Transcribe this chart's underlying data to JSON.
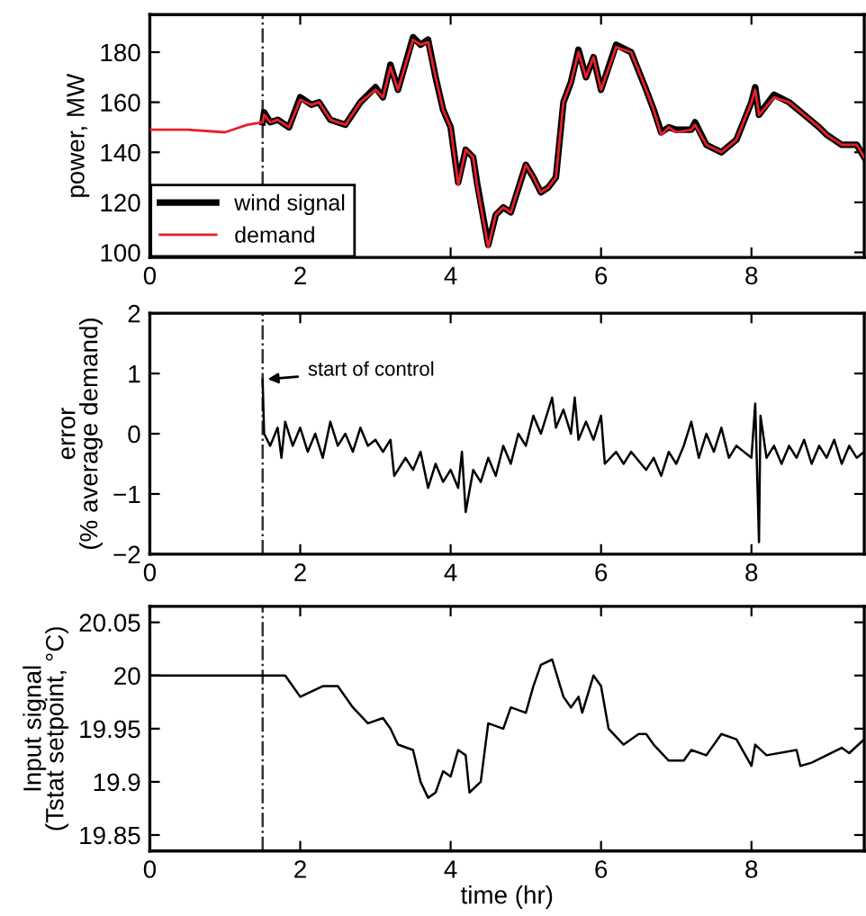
{
  "chart_data": [
    {
      "type": "line",
      "ylabel": "power, MW",
      "xlim": [
        0,
        9.5
      ],
      "ylim": [
        98,
        195
      ],
      "xticks": [
        0,
        2,
        4,
        6,
        8
      ],
      "yticks": [
        100,
        120,
        140,
        160,
        180
      ],
      "grid": false,
      "legend": "bottom left",
      "tick_labels": "xy",
      "ref_lines": [
        {
          "axis": "x",
          "value": 1.5,
          "color": "#333333",
          "line_style": "dashdot"
        }
      ],
      "series": [
        {
          "name": "wind signal",
          "color": "#000000",
          "x": [
            1.5,
            1.52,
            1.6,
            1.7,
            1.85,
            2.0,
            2.15,
            2.25,
            2.4,
            2.6,
            2.8,
            3.0,
            3.1,
            3.2,
            3.3,
            3.5,
            3.6,
            3.7,
            3.8,
            3.9,
            4.0,
            4.1,
            4.2,
            4.3,
            4.35,
            4.5,
            4.6,
            4.7,
            4.8,
            5.0,
            5.1,
            5.2,
            5.3,
            5.4,
            5.5,
            5.6,
            5.7,
            5.8,
            5.9,
            6.0,
            6.2,
            6.4,
            6.6,
            6.7,
            6.8,
            6.9,
            7.0,
            7.2,
            7.25,
            7.4,
            7.6,
            7.8,
            8.0,
            8.05,
            8.1,
            8.3,
            8.5,
            8.7,
            8.9,
            9.0,
            9.2,
            9.4,
            9.5
          ],
          "values": [
            152,
            156,
            152,
            153,
            150,
            162,
            159,
            160,
            153,
            151,
            160,
            166,
            162,
            175,
            165,
            186,
            183,
            185,
            170,
            157,
            150,
            128,
            141,
            138,
            128,
            103,
            115,
            118,
            116,
            135,
            130,
            124,
            126,
            130,
            160,
            168,
            181,
            170,
            178,
            165,
            183,
            180,
            165,
            157,
            148,
            150,
            149,
            149,
            152,
            143,
            140,
            145,
            160,
            166,
            155,
            163,
            160,
            155,
            150,
            147,
            143,
            143,
            138
          ]
        },
        {
          "name": "demand",
          "color": "#e8202a",
          "x": [
            0,
            0.5,
            1.0,
            1.3,
            1.5,
            1.52,
            1.6,
            1.7,
            1.85,
            2.0,
            2.15,
            2.25,
            2.4,
            2.6,
            2.8,
            3.0,
            3.1,
            3.2,
            3.3,
            3.5,
            3.6,
            3.7,
            3.8,
            3.9,
            4.0,
            4.1,
            4.2,
            4.3,
            4.35,
            4.5,
            4.6,
            4.7,
            4.8,
            5.0,
            5.1,
            5.2,
            5.3,
            5.4,
            5.5,
            5.6,
            5.7,
            5.8,
            5.9,
            6.0,
            6.2,
            6.4,
            6.6,
            6.7,
            6.8,
            6.9,
            7.0,
            7.2,
            7.25,
            7.4,
            7.6,
            7.8,
            8.0,
            8.05,
            8.1,
            8.3,
            8.5,
            8.7,
            8.9,
            9.0,
            9.2,
            9.4,
            9.5
          ],
          "values": [
            149,
            149,
            148,
            151,
            152,
            155,
            152,
            153,
            150,
            161,
            159,
            160,
            153,
            151,
            160,
            165,
            162,
            174,
            165,
            185,
            183,
            184,
            170,
            157,
            150,
            127,
            141,
            138,
            127,
            102,
            115,
            118,
            116,
            135,
            130,
            124,
            126,
            130,
            160,
            168,
            180,
            170,
            178,
            165,
            182,
            180,
            165,
            157,
            147,
            150,
            148,
            149,
            151,
            143,
            140,
            145,
            160,
            165,
            155,
            162,
            160,
            155,
            150,
            147,
            143,
            143,
            138
          ]
        }
      ]
    },
    {
      "type": "line",
      "ylabel": "error\n(% average demand)",
      "xlim": [
        0,
        9.5
      ],
      "ylim": [
        -2,
        2
      ],
      "xticks": [
        0,
        2,
        4,
        6,
        8
      ],
      "yticks": [
        {
          "value": -2,
          "label": "−2"
        },
        {
          "value": -1,
          "label": "−1"
        },
        0,
        1,
        2
      ],
      "grid": false,
      "ref_lines": [
        {
          "axis": "x",
          "value": 1.5,
          "color": "#333333",
          "line_style": "dashdot"
        }
      ],
      "annotations": [
        {
          "text": "start of control",
          "x": 1.5,
          "y": 0.9
        }
      ],
      "series": [
        {
          "color": "#000000",
          "x": [
            1.5,
            1.52,
            1.6,
            1.7,
            1.75,
            1.8,
            1.9,
            2.0,
            2.1,
            2.2,
            2.3,
            2.4,
            2.5,
            2.6,
            2.7,
            2.8,
            2.9,
            3.0,
            3.1,
            3.2,
            3.25,
            3.4,
            3.5,
            3.6,
            3.7,
            3.8,
            3.9,
            4.0,
            4.1,
            4.15,
            4.2,
            4.3,
            4.4,
            4.5,
            4.6,
            4.7,
            4.8,
            4.9,
            5.0,
            5.1,
            5.2,
            5.3,
            5.35,
            5.4,
            5.5,
            5.6,
            5.65,
            5.7,
            5.8,
            5.9,
            6.0,
            6.05,
            6.2,
            6.3,
            6.4,
            6.6,
            6.7,
            6.8,
            6.9,
            7.0,
            7.1,
            7.2,
            7.3,
            7.4,
            7.5,
            7.6,
            7.7,
            7.8,
            7.9,
            8.0,
            8.05,
            8.1,
            8.12,
            8.2,
            8.3,
            8.4,
            8.5,
            8.6,
            8.7,
            8.8,
            8.9,
            9.0,
            9.1,
            9.2,
            9.3,
            9.4,
            9.5
          ],
          "values": [
            0.9,
            0,
            -0.2,
            0.1,
            -0.4,
            0.2,
            -0.2,
            0.1,
            -0.3,
            0,
            -0.4,
            0.2,
            -0.2,
            0,
            -0.3,
            0.1,
            -0.2,
            -0.1,
            -0.3,
            -0.1,
            -0.7,
            -0.4,
            -0.6,
            -0.3,
            -0.9,
            -0.5,
            -0.8,
            -0.6,
            -0.9,
            -0.3,
            -1.3,
            -0.6,
            -0.8,
            -0.4,
            -0.7,
            -0.2,
            -0.5,
            0,
            -0.2,
            0.3,
            0,
            0.4,
            0.6,
            0.1,
            0.4,
            0,
            0.6,
            -0.1,
            0.2,
            -0.1,
            0.3,
            -0.5,
            -0.3,
            -0.5,
            -0.3,
            -0.6,
            -0.4,
            -0.7,
            -0.3,
            -0.5,
            -0.2,
            0.2,
            -0.4,
            0,
            -0.3,
            0.1,
            -0.4,
            -0.2,
            -0.3,
            -0.4,
            0.5,
            -1.8,
            0.3,
            -0.4,
            -0.2,
            -0.5,
            -0.2,
            -0.4,
            -0.1,
            -0.5,
            -0.2,
            -0.4,
            -0.1,
            -0.5,
            -0.2,
            -0.4,
            -0.3
          ]
        }
      ]
    },
    {
      "type": "line",
      "xlabel": "time (hr)",
      "ylabel": "Input signal\n(Tstat setpoint, °C)",
      "xlim": [
        0,
        9.5
      ],
      "ylim": [
        19.835,
        20.065
      ],
      "xticks": [
        0,
        2,
        4,
        6,
        8
      ],
      "yticks": [
        19.85,
        19.9,
        19.95,
        20,
        20.05
      ],
      "grid": false,
      "ref_lines": [
        {
          "axis": "x",
          "value": 1.5,
          "color": "#333333",
          "line_style": "dashdot"
        }
      ],
      "series": [
        {
          "color": "#000000",
          "x": [
            0,
            1.5,
            1.6,
            1.8,
            2.0,
            2.3,
            2.5,
            2.7,
            2.9,
            3.1,
            3.2,
            3.3,
            3.5,
            3.6,
            3.7,
            3.8,
            3.9,
            4.0,
            4.1,
            4.2,
            4.25,
            4.4,
            4.5,
            4.7,
            4.8,
            5.0,
            5.1,
            5.2,
            5.35,
            5.5,
            5.6,
            5.7,
            5.75,
            5.9,
            6.0,
            6.1,
            6.3,
            6.5,
            6.6,
            6.7,
            6.9,
            7.1,
            7.2,
            7.4,
            7.6,
            7.8,
            8.0,
            8.05,
            8.2,
            8.6,
            8.65,
            8.8,
            9.2,
            9.3,
            9.5
          ],
          "values": [
            20.0,
            20.0,
            20.0,
            20.0,
            19.98,
            19.99,
            19.99,
            19.97,
            19.955,
            19.96,
            19.95,
            19.935,
            19.93,
            19.9,
            19.885,
            19.89,
            19.91,
            19.905,
            19.93,
            19.925,
            19.89,
            19.9,
            19.955,
            19.95,
            19.97,
            19.965,
            19.99,
            20.01,
            20.015,
            19.98,
            19.97,
            19.98,
            19.965,
            20.0,
            19.99,
            19.95,
            19.935,
            19.945,
            19.945,
            19.935,
            19.92,
            19.92,
            19.93,
            19.925,
            19.945,
            19.94,
            19.915,
            19.935,
            19.925,
            19.93,
            19.915,
            19.918,
            19.932,
            19.927,
            19.94
          ]
        }
      ]
    }
  ]
}
